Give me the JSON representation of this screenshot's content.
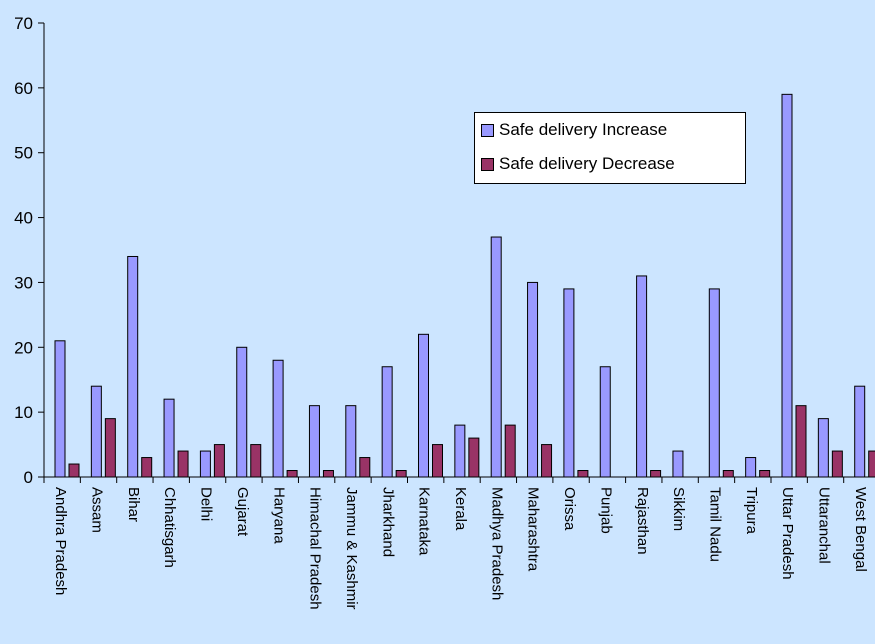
{
  "chart_data": {
    "type": "bar",
    "categories": [
      "Andhra Pradesh",
      "Assam",
      "Bihar",
      "Chhatisgarh",
      "Delhi",
      "Gujarat",
      "Haryana",
      "Himachal Pradesh",
      "Jammu & Kashmir",
      "Jharkhand",
      "Karnataka",
      "Kerala",
      "Madhya Pradesh",
      "Maharashtra",
      "Orissa",
      "Punjab",
      "Rajasthan",
      "Sikkim",
      "Tamil Nadu",
      "Tripura",
      "Uttar Pradesh",
      "Uttaranchal",
      "West Bengal"
    ],
    "series": [
      {
        "name": "Safe delivery Increase",
        "color": "#9999ff",
        "values": [
          21,
          14,
          34,
          12,
          4,
          20,
          18,
          11,
          11,
          17,
          22,
          8,
          37,
          30,
          29,
          17,
          31,
          4,
          29,
          3,
          59,
          9,
          14
        ]
      },
      {
        "name": "Safe delivery Decrease",
        "color": "#993366",
        "values": [
          2,
          9,
          3,
          4,
          5,
          5,
          1,
          1,
          3,
          1,
          5,
          6,
          8,
          5,
          1,
          0,
          1,
          0,
          1,
          1,
          11,
          4,
          4
        ]
      }
    ],
    "ylim": [
      0,
      70
    ],
    "yticks": [
      "0",
      "10",
      "20",
      "30",
      "40",
      "50",
      "60",
      "70"
    ],
    "grid": false,
    "legend_position": "upper-right"
  }
}
